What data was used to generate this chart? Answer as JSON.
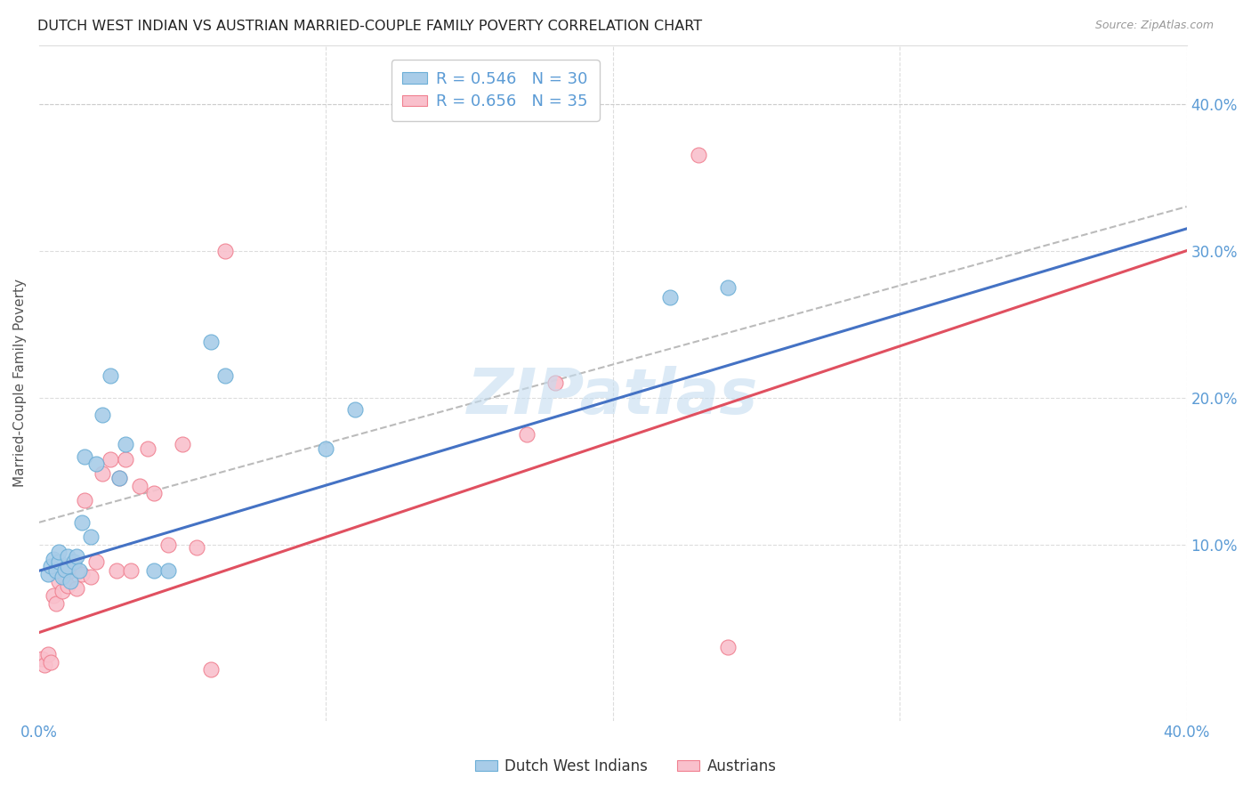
{
  "title": "DUTCH WEST INDIAN VS AUSTRIAN MARRIED-COUPLE FAMILY POVERTY CORRELATION CHART",
  "source": "Source: ZipAtlas.com",
  "ylabel": "Married-Couple Family Poverty",
  "legend_blue_label": "R = 0.546   N = 30",
  "legend_pink_label": "R = 0.656   N = 35",
  "legend_bottom_left": "Dutch West Indians",
  "legend_bottom_right": "Austrians",
  "blue_scatter_color": "#a8cce8",
  "pink_scatter_color": "#f9c0cc",
  "blue_edge_color": "#6baed6",
  "pink_edge_color": "#f08090",
  "blue_line_color": "#4472C4",
  "pink_line_color": "#E05060",
  "dashed_line_color": "#bbbbbb",
  "watermark_color": "#c5ddf0",
  "background_color": "#ffffff",
  "grid_color": "#dddddd",
  "title_color": "#222222",
  "axis_label_color": "#5B9BD5",
  "xmin": 0.0,
  "xmax": 0.4,
  "ymin": -0.02,
  "ymax": 0.44,
  "blue_points_x": [
    0.003,
    0.004,
    0.005,
    0.006,
    0.007,
    0.007,
    0.008,
    0.009,
    0.01,
    0.01,
    0.011,
    0.012,
    0.013,
    0.014,
    0.015,
    0.016,
    0.018,
    0.02,
    0.022,
    0.025,
    0.028,
    0.03,
    0.04,
    0.045,
    0.06,
    0.065,
    0.1,
    0.11,
    0.22,
    0.24
  ],
  "blue_points_y": [
    0.08,
    0.085,
    0.09,
    0.082,
    0.088,
    0.095,
    0.078,
    0.083,
    0.085,
    0.092,
    0.075,
    0.088,
    0.092,
    0.082,
    0.115,
    0.16,
    0.105,
    0.155,
    0.188,
    0.215,
    0.145,
    0.168,
    0.082,
    0.082,
    0.238,
    0.215,
    0.165,
    0.192,
    0.268,
    0.275
  ],
  "pink_points_x": [
    0.001,
    0.002,
    0.003,
    0.004,
    0.005,
    0.006,
    0.007,
    0.008,
    0.009,
    0.01,
    0.011,
    0.012,
    0.013,
    0.015,
    0.016,
    0.018,
    0.02,
    0.022,
    0.025,
    0.027,
    0.028,
    0.03,
    0.032,
    0.035,
    0.038,
    0.04,
    0.045,
    0.05,
    0.055,
    0.06,
    0.065,
    0.17,
    0.18,
    0.23,
    0.24
  ],
  "pink_points_y": [
    0.022,
    0.018,
    0.025,
    0.02,
    0.065,
    0.06,
    0.075,
    0.068,
    0.078,
    0.072,
    0.082,
    0.085,
    0.07,
    0.08,
    0.13,
    0.078,
    0.088,
    0.148,
    0.158,
    0.082,
    0.145,
    0.158,
    0.082,
    0.14,
    0.165,
    0.135,
    0.1,
    0.168,
    0.098,
    0.015,
    0.3,
    0.175,
    0.21,
    0.365,
    0.03
  ],
  "blue_line_x0": 0.0,
  "blue_line_y0": 0.082,
  "blue_line_x1": 0.4,
  "blue_line_y1": 0.315,
  "pink_line_x0": 0.0,
  "pink_line_y0": 0.04,
  "pink_line_x1": 0.4,
  "pink_line_y1": 0.3,
  "dash_line_x0": 0.0,
  "dash_line_y0": 0.115,
  "dash_line_x1": 0.4,
  "dash_line_y1": 0.33
}
